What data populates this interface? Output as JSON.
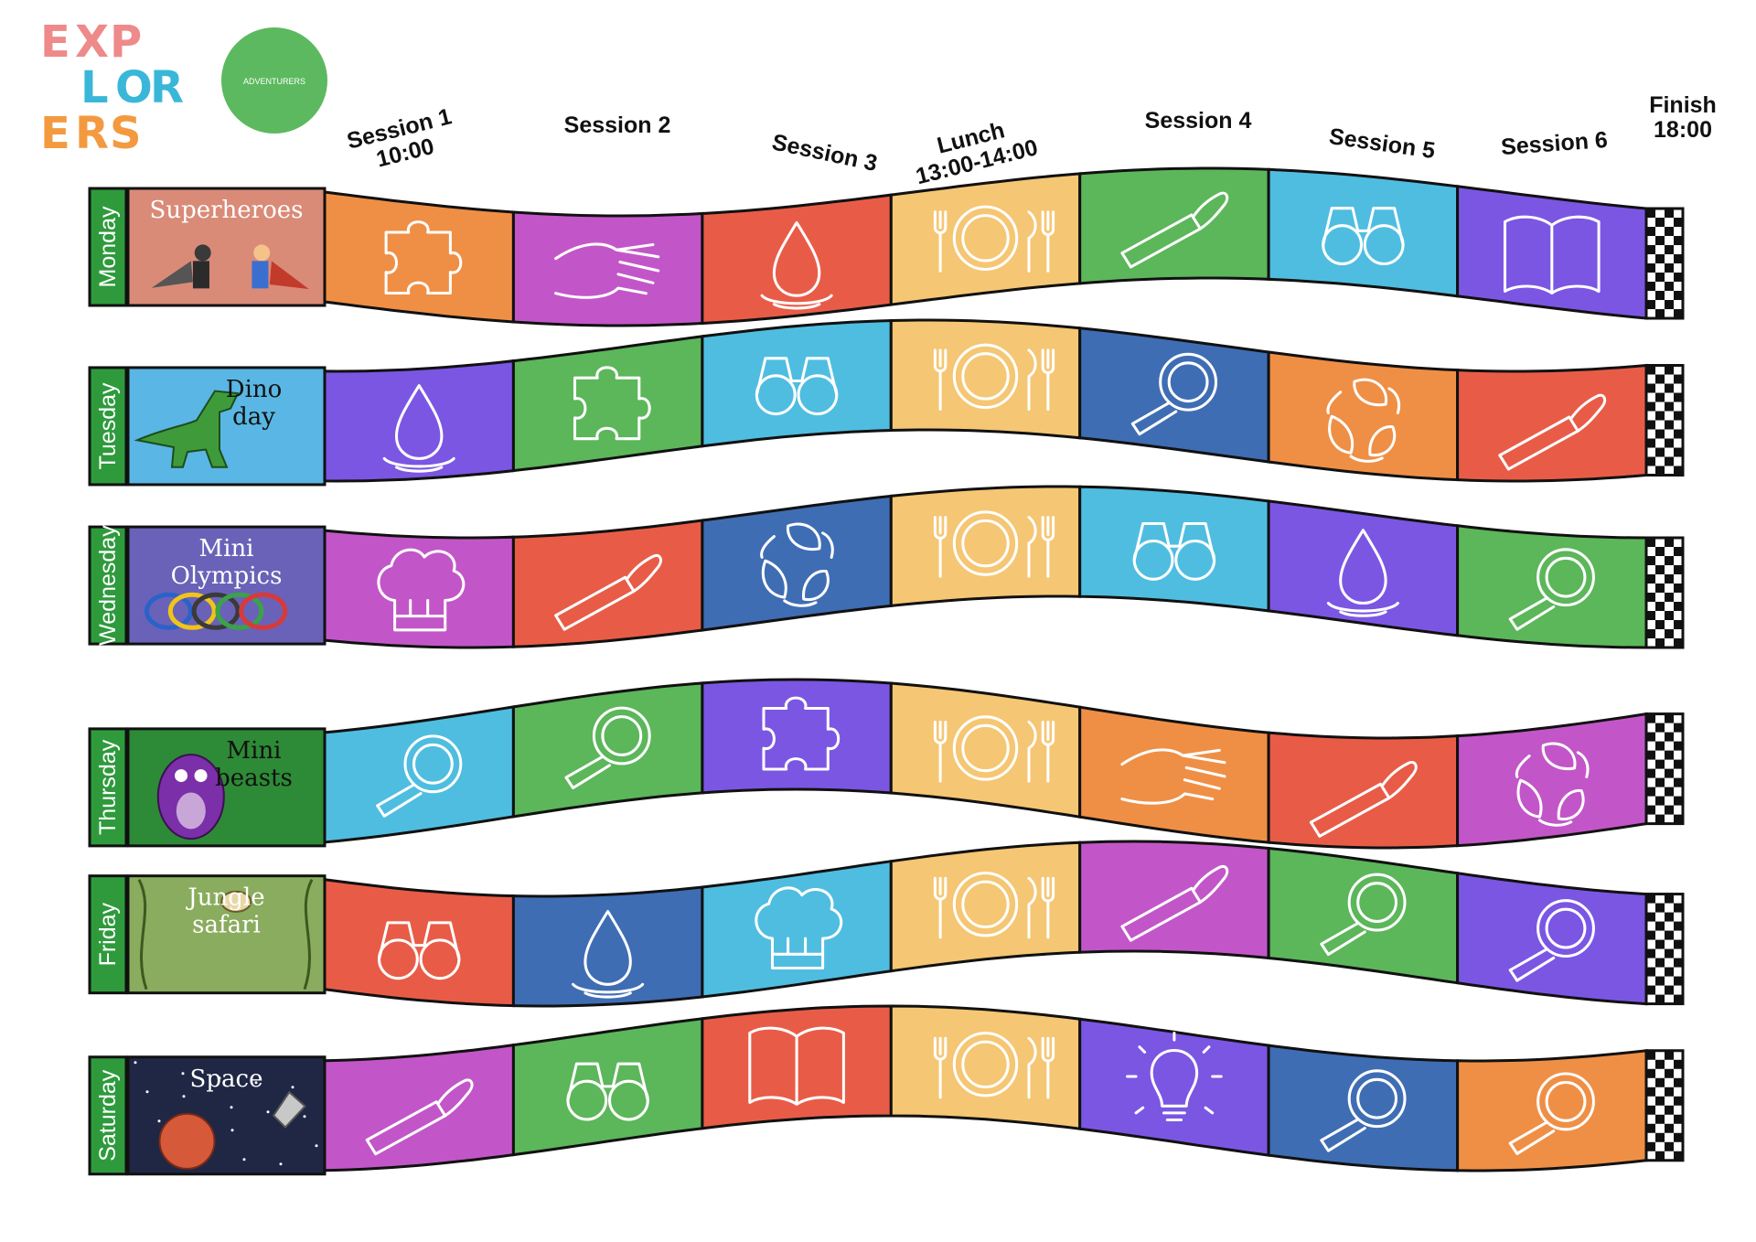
{
  "logo": {
    "lines": [
      {
        "letters": [
          "E",
          "X",
          "P"
        ],
        "color": "#ee8a8a"
      },
      {
        "letters": [
          "L",
          "O",
          "R"
        ],
        "color": "#3ab7d8"
      },
      {
        "letters": [
          "E",
          "R",
          "S"
        ],
        "color": "#f39a40"
      }
    ],
    "badge_text": "ADVENTURERS",
    "badge_color": "#5cb95f"
  },
  "headers": [
    {
      "lines": [
        "Session 1",
        "10:00"
      ]
    },
    {
      "lines": [
        "Session 2"
      ]
    },
    {
      "lines": [
        "Session 3"
      ]
    },
    {
      "lines": [
        "Lunch",
        "13:00-14:00"
      ]
    },
    {
      "lines": [
        "Session 4"
      ]
    },
    {
      "lines": [
        "Session 5"
      ]
    },
    {
      "lines": [
        "Session 6"
      ]
    },
    {
      "lines": [
        "Finish",
        "18:00"
      ]
    }
  ],
  "days": [
    {
      "day": "Monday",
      "theme": [
        "Superheroes"
      ],
      "theme_bg": "#d98b78",
      "theme_fg": "#ffffff",
      "tiles": [
        {
          "color": "#ef8f45",
          "icon": "puzzle-icon"
        },
        {
          "color": "#c256c8",
          "icon": "hand-icon"
        },
        {
          "color": "#e85c47",
          "icon": "water-drop-icon"
        },
        {
          "color": "#f5c673",
          "icon": "plate-cutlery-icon"
        },
        {
          "color": "#5cb65a",
          "icon": "paintbrush-icon"
        },
        {
          "color": "#4fbde0",
          "icon": "binoculars-icon"
        },
        {
          "color": "#7b56e3",
          "icon": "book-icon"
        }
      ]
    },
    {
      "day": "Tuesday",
      "theme": [
        "Dino",
        "day"
      ],
      "theme_bg": "#5ab6e4",
      "theme_fg": "#111111",
      "tiles": [
        {
          "color": "#7b56e3",
          "icon": "water-drop-icon"
        },
        {
          "color": "#5cb65a",
          "icon": "puzzle-icon"
        },
        {
          "color": "#4fbde0",
          "icon": "binoculars-icon"
        },
        {
          "color": "#f5c673",
          "icon": "plate-cutlery-icon"
        },
        {
          "color": "#3f6db4",
          "icon": "magnifier-icon"
        },
        {
          "color": "#ef8f45",
          "icon": "recycle-leaves-icon"
        },
        {
          "color": "#e85c47",
          "icon": "paintbrush-icon"
        }
      ]
    },
    {
      "day": "Wednesday",
      "theme": [
        "Mini",
        "Olympics"
      ],
      "theme_bg": "#6a62b8",
      "theme_fg": "#ffffff",
      "tiles": [
        {
          "color": "#c256c8",
          "icon": "chef-hat-icon"
        },
        {
          "color": "#e85c47",
          "icon": "paintbrush-icon"
        },
        {
          "color": "#3f6db4",
          "icon": "recycle-leaves-icon"
        },
        {
          "color": "#f5c673",
          "icon": "plate-cutlery-icon"
        },
        {
          "color": "#4fbde0",
          "icon": "binoculars-icon"
        },
        {
          "color": "#7b56e3",
          "icon": "water-drop-icon"
        },
        {
          "color": "#5cb65a",
          "icon": "magnifier-icon"
        }
      ]
    },
    {
      "day": "Thursday",
      "theme": [
        "Mini",
        "beasts"
      ],
      "theme_bg": "#2d8a36",
      "theme_fg": "#111111",
      "tiles": [
        {
          "color": "#4fbde0",
          "icon": "magnifier-icon"
        },
        {
          "color": "#5cb65a",
          "icon": "magnifier-icon"
        },
        {
          "color": "#7b56e3",
          "icon": "puzzle-icon"
        },
        {
          "color": "#f5c673",
          "icon": "plate-cutlery-icon"
        },
        {
          "color": "#ef8f45",
          "icon": "hand-icon"
        },
        {
          "color": "#e85c47",
          "icon": "paintbrush-icon"
        },
        {
          "color": "#c256c8",
          "icon": "recycle-leaves-icon"
        }
      ]
    },
    {
      "day": "Friday",
      "theme": [
        "Jungle",
        "safari"
      ],
      "theme_bg": "#8aac5e",
      "theme_fg": "#ffffff",
      "tiles": [
        {
          "color": "#e85c47",
          "icon": "binoculars-icon"
        },
        {
          "color": "#3f6db4",
          "icon": "water-drop-icon"
        },
        {
          "color": "#4fbde0",
          "icon": "chef-hat-icon"
        },
        {
          "color": "#f5c673",
          "icon": "plate-cutlery-icon"
        },
        {
          "color": "#c256c8",
          "icon": "paintbrush-icon"
        },
        {
          "color": "#5cb65a",
          "icon": "magnifier-icon"
        },
        {
          "color": "#7b56e3",
          "icon": "magnifier-icon"
        }
      ]
    },
    {
      "day": "Saturday",
      "theme": [
        "Space"
      ],
      "theme_bg": "#1f2744",
      "theme_fg": "#ffffff",
      "tiles": [
        {
          "color": "#c256c8",
          "icon": "paintbrush-icon"
        },
        {
          "color": "#5cb65a",
          "icon": "binoculars-icon"
        },
        {
          "color": "#e85c47",
          "icon": "book-icon"
        },
        {
          "color": "#f5c673",
          "icon": "plate-cutlery-icon"
        },
        {
          "color": "#7b56e3",
          "icon": "lightbulb-icon"
        },
        {
          "color": "#3f6db4",
          "icon": "magnifier-icon"
        },
        {
          "color": "#ef8f45",
          "icon": "magnifier-icon"
        }
      ]
    }
  ]
}
